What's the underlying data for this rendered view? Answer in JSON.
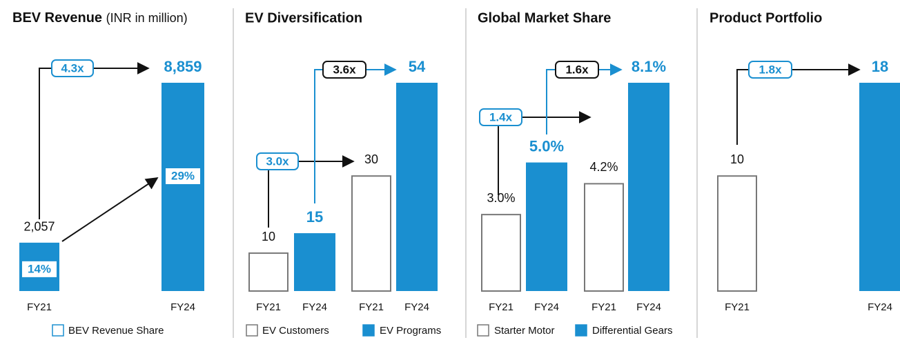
{
  "chart_data": [
    {
      "type": "bar",
      "title": "BEV Revenue",
      "subtitle": "(INR in million)",
      "categories": [
        "FY21",
        "FY24"
      ],
      "values": [
        2057,
        8859
      ],
      "value_labels": [
        "2,057",
        "8,859"
      ],
      "color": "#1a8fd0",
      "shares": [
        14,
        29
      ],
      "share_labels": [
        "14%",
        "29%"
      ],
      "legend_label": "BEV Revenue Share",
      "annotations": [
        "4.3x"
      ]
    },
    {
      "type": "bar",
      "title": "EV Diversification",
      "categories": [
        "FY21",
        "FY24",
        "FY21",
        "FY24"
      ],
      "series": [
        {
          "name": "EV Customers",
          "color": "#777777",
          "fill": "none",
          "values": [
            10,
            null,
            30,
            null
          ]
        },
        {
          "name": "EV Programs",
          "color": "#1a8fd0",
          "fill": "solid",
          "values": [
            null,
            15,
            null,
            54
          ]
        }
      ],
      "annotations": [
        "3.0x",
        "3.6x"
      ]
    },
    {
      "type": "bar",
      "title": "Global Market Share",
      "categories": [
        "FY21",
        "FY24",
        "FY21",
        "FY24"
      ],
      "series": [
        {
          "name": "Starter Motor",
          "color": "#777777",
          "fill": "none",
          "values": [
            3.0,
            null,
            4.2,
            null
          ],
          "value_labels": [
            "3.0%",
            null,
            "4.2%",
            null
          ]
        },
        {
          "name": "Differential Gears",
          "color": "#1a8fd0",
          "fill": "solid",
          "values": [
            null,
            5.0,
            null,
            8.1
          ],
          "value_labels": [
            null,
            "5.0%",
            null,
            "8.1%"
          ]
        }
      ],
      "annotations": [
        "1.4x",
        "1.6x"
      ]
    },
    {
      "type": "bar",
      "title": "Product Portfolio",
      "categories": [
        "FY21",
        "FY24"
      ],
      "series": [
        {
          "name": null,
          "color": "#777777",
          "fill": "none",
          "values": [
            10,
            null
          ]
        },
        {
          "name": null,
          "color": "#1a8fd0",
          "fill": "solid",
          "values": [
            null,
            18
          ]
        }
      ],
      "annotations": [
        "1.8x"
      ]
    }
  ]
}
